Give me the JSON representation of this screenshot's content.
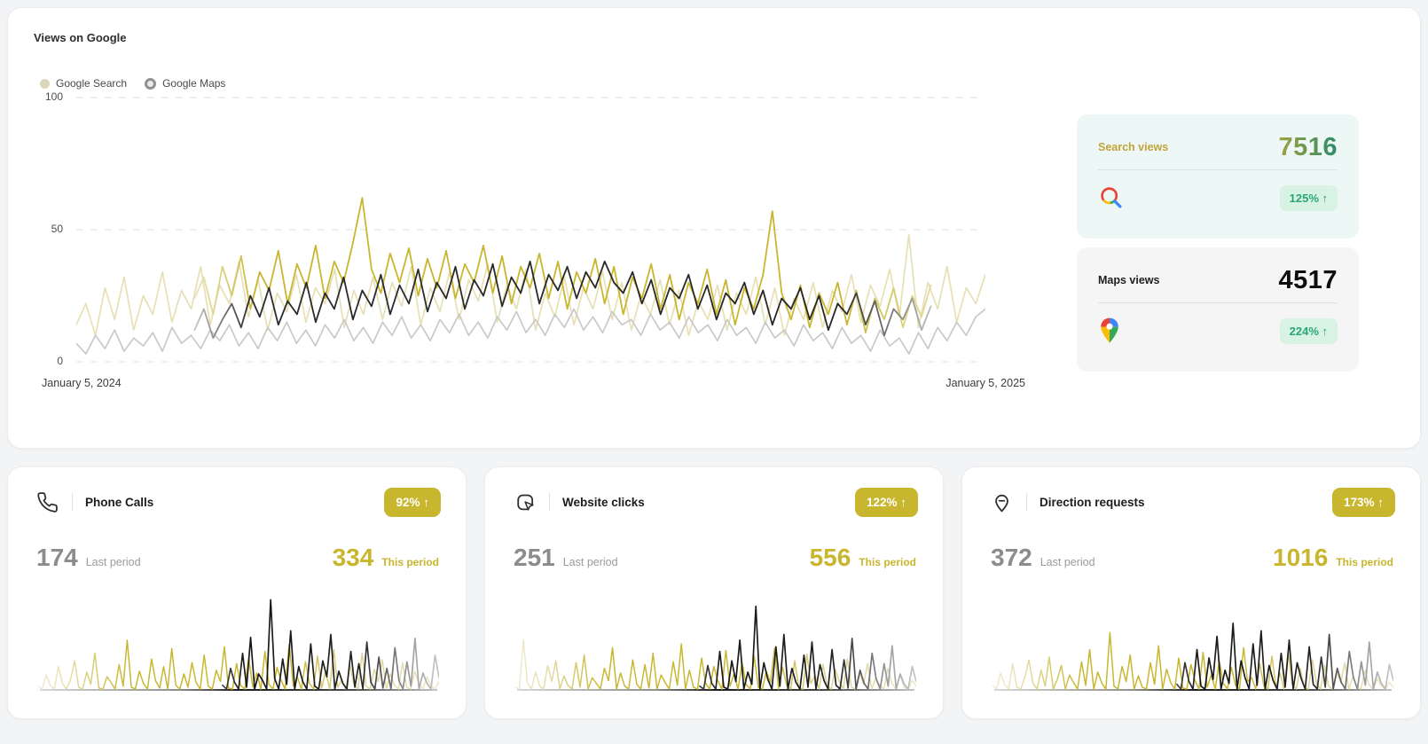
{
  "colors": {
    "accent_olive": "#c8b62e",
    "pale_olive": "#e7e0b4",
    "dark_line": "#262626",
    "pale_gray": "#c9c9c9",
    "grid": "#dfdfdf",
    "mint_card_bg": "#edf8f6",
    "gray_card_bg": "#f5f5f6",
    "green_badge_bg": "#d8f3e4",
    "green_badge_text": "#2aa576",
    "gradients": {
      "main_search_this": [
        [
          0.13,
          "#eae4bf"
        ],
        [
          0.2,
          "#c8b62e"
        ],
        [
          0.84,
          "#c8b62e"
        ],
        [
          0.94,
          "#e2db9f"
        ]
      ],
      "main_maps_this": [
        [
          0.13,
          "#c8c8c8"
        ],
        [
          0.19,
          "#2b2b2b"
        ],
        [
          0.84,
          "#262626"
        ],
        [
          0.94,
          "#bdbdbd"
        ]
      ],
      "mini_yellow": [
        [
          0,
          "#f0ecd6"
        ],
        [
          0.08,
          "#e4dda8"
        ],
        [
          0.22,
          "#c8b62e"
        ],
        [
          0.62,
          "#c8b62e"
        ],
        [
          0.76,
          "#d8cf8b"
        ],
        [
          1,
          "#ece7c8"
        ]
      ],
      "mini_dark": [
        [
          0.46,
          "#444444"
        ],
        [
          0.52,
          "#161616"
        ],
        [
          0.8,
          "#222222"
        ],
        [
          0.93,
          "#9e9e9e"
        ],
        [
          1,
          "#c6c6c6"
        ]
      ],
      "mini_base": [
        [
          0,
          "#d8d8d8"
        ],
        [
          0.35,
          "#8f8f8f"
        ],
        [
          0.5,
          "#1c1c1c"
        ],
        [
          0.78,
          "#4a4a4a"
        ],
        [
          1,
          "#c6c6c6"
        ]
      ]
    }
  },
  "views_panel": {
    "title": "Views on Google",
    "legend": [
      {
        "label": "Google Search"
      },
      {
        "label": "Google Maps"
      }
    ],
    "y_ticks": [
      "100",
      "50",
      "0"
    ],
    "x_start_label": "January 5, 2024",
    "x_end_label": "January 5, 2025",
    "stat_cards": [
      {
        "label": "Search views",
        "value": "7516",
        "change": "125% ↑",
        "icon": "google-search-icon"
      },
      {
        "label": "Maps views",
        "value": "4517",
        "change": "224% ↑",
        "icon": "google-maps-pin-icon"
      }
    ]
  },
  "metric_cards": [
    {
      "title": "Phone Calls",
      "badge": "92% ↑",
      "last_value": "174",
      "last_label": "Last period",
      "this_value": "334",
      "this_label": "This period",
      "icon": "phone-icon"
    },
    {
      "title": "Website clicks",
      "badge": "122% ↑",
      "last_value": "251",
      "last_label": "Last period",
      "this_value": "556",
      "this_label": "This period",
      "icon": "website-click-icon"
    },
    {
      "title": "Direction requests",
      "badge": "173% ↑",
      "last_value": "372",
      "last_label": "Last period",
      "this_value": "1016",
      "this_label": "This period",
      "icon": "direction-pin-icon"
    }
  ],
  "chart_data": [
    {
      "type": "line",
      "title": "Views on Google",
      "xlabel": "",
      "ylabel": "",
      "x_range": [
        "January 5, 2024",
        "January 5, 2025"
      ],
      "ylim": [
        0,
        100
      ],
      "y_ticks": [
        100,
        50,
        0
      ],
      "grid": true,
      "legend_position": "top-left",
      "series": [
        {
          "name": "Google Search (faded/last)",
          "stroke": "#e7e0b4",
          "span": [
            0,
            1
          ],
          "width": 1.7,
          "values": [
            14,
            22,
            10,
            28,
            16,
            32,
            12,
            25,
            18,
            34,
            15,
            27,
            20,
            36,
            14,
            29,
            22,
            38,
            17,
            31,
            12,
            26,
            19,
            33,
            15,
            28,
            22,
            35,
            13,
            27,
            18,
            32,
            16,
            30,
            21,
            36,
            14,
            28,
            19,
            34,
            16,
            31,
            23,
            37,
            15,
            29,
            20,
            35,
            12,
            26,
            17,
            32,
            14,
            28,
            20,
            34,
            16,
            30,
            12,
            25,
            18,
            31,
            14,
            27,
            10,
            23,
            16,
            29,
            12,
            26,
            18,
            32,
            14,
            28,
            10,
            24,
            16,
            30,
            13,
            27,
            19,
            33,
            15,
            29,
            21,
            35,
            17,
            48,
            13,
            30,
            20,
            36,
            15,
            28,
            22,
            33
          ]
        },
        {
          "name": "Google Maps (faded/last)",
          "stroke": "#c9c9c9",
          "span": [
            0,
            1
          ],
          "width": 1.7,
          "values": [
            7,
            3,
            10,
            5,
            12,
            4,
            9,
            6,
            11,
            4,
            13,
            7,
            10,
            5,
            12,
            8,
            14,
            6,
            11,
            5,
            13,
            8,
            15,
            7,
            12,
            6,
            14,
            9,
            16,
            8,
            13,
            7,
            15,
            10,
            17,
            9,
            14,
            8,
            16,
            11,
            18,
            10,
            15,
            9,
            17,
            12,
            19,
            11,
            16,
            10,
            18,
            13,
            20,
            12,
            17,
            11,
            19,
            14,
            16,
            10,
            18,
            12,
            15,
            9,
            17,
            11,
            14,
            8,
            16,
            10,
            13,
            7,
            15,
            9,
            12,
            6,
            14,
            8,
            11,
            5,
            13,
            7,
            10,
            4,
            12,
            6,
            9,
            3,
            11,
            5,
            13,
            8,
            15,
            10,
            17,
            20
          ]
        },
        {
          "name": "Google Search (this period)",
          "grad": "main_search_this",
          "span": [
            0.13,
            0.94
          ],
          "width": 1.8,
          "values": [
            24,
            32,
            18,
            36,
            25,
            40,
            20,
            34,
            27,
            42,
            22,
            37,
            28,
            44,
            24,
            38,
            30,
            45,
            62,
            35,
            26,
            41,
            30,
            43,
            25,
            39,
            28,
            42,
            24,
            37,
            30,
            44,
            26,
            40,
            22,
            36,
            28,
            41,
            24,
            38,
            20,
            34,
            26,
            39,
            22,
            36,
            18,
            32,
            24,
            37,
            20,
            33,
            16,
            30,
            22,
            35,
            18,
            31,
            14,
            28,
            20,
            33,
            57,
            26,
            16,
            29,
            13,
            26,
            18,
            30,
            14,
            27,
            11,
            24,
            16,
            28,
            13,
            25,
            17,
            29
          ]
        },
        {
          "name": "Google Maps (this period)",
          "grad": "main_maps_this",
          "span": [
            0.13,
            0.94
          ],
          "width": 1.8,
          "values": [
            12,
            20,
            9,
            16,
            22,
            13,
            25,
            17,
            28,
            14,
            23,
            18,
            30,
            15,
            26,
            20,
            32,
            16,
            27,
            21,
            33,
            18,
            29,
            22,
            35,
            19,
            30,
            24,
            36,
            20,
            31,
            25,
            37,
            21,
            32,
            26,
            38,
            22,
            33,
            27,
            36,
            24,
            34,
            28,
            38,
            30,
            26,
            34,
            22,
            31,
            18,
            28,
            24,
            33,
            20,
            29,
            16,
            26,
            22,
            30,
            18,
            27,
            14,
            24,
            20,
            28,
            16,
            25,
            12,
            22,
            18,
            26,
            14,
            23,
            10,
            20,
            16,
            24,
            12,
            21
          ]
        }
      ]
    },
    {
      "type": "line",
      "title": "Phone Calls",
      "ylim": [
        0,
        100
      ],
      "grid": false,
      "series": [
        {
          "name": "this period",
          "grad": "mini_yellow",
          "span": [
            0,
            1
          ],
          "width": 1.5,
          "values": [
            3,
            0,
            15,
            4,
            0,
            24,
            6,
            0,
            10,
            30,
            2,
            0,
            18,
            5,
            38,
            1,
            0,
            13,
            7,
            0,
            26,
            3,
            52,
            2,
            0,
            19,
            6,
            0,
            32,
            9,
            1,
            24,
            0,
            43,
            4,
            0,
            16,
            2,
            28,
            7,
            0,
            36,
            3,
            0,
            20,
            8,
            45,
            1,
            0,
            27,
            4,
            0,
            33,
            2,
            17,
            0,
            40,
            5,
            0,
            23,
            9,
            0,
            48,
            3,
            13,
            0,
            29,
            6,
            0,
            35,
            1,
            19,
            0,
            42,
            2,
            10,
            0,
            25,
            5,
            0,
            38,
            3,
            0,
            21,
            8,
            31,
            0,
            16,
            4,
            0,
            28,
            2,
            0,
            19,
            6,
            0,
            13,
            3,
            0,
            8
          ]
        },
        {
          "name": "last period",
          "grad": "mini_dark",
          "span": [
            0.46,
            1
          ],
          "width": 1.7,
          "values": [
            4,
            0,
            22,
            7,
            0,
            38,
            2,
            55,
            0,
            16,
            9,
            0,
            95,
            11,
            0,
            32,
            5,
            62,
            0,
            24,
            8,
            0,
            48,
            3,
            0,
            30,
            13,
            58,
            0,
            19,
            6,
            0,
            40,
            2,
            27,
            0,
            50,
            7,
            0,
            34,
            1,
            22,
            0,
            44,
            9,
            0,
            29,
            3,
            54,
            0,
            17,
            6,
            0,
            36,
            12
          ]
        }
      ]
    },
    {
      "type": "line",
      "title": "Website clicks",
      "ylim": [
        0,
        100
      ],
      "grid": false,
      "series": [
        {
          "name": "this period",
          "grad": "mini_yellow",
          "span": [
            0,
            1
          ],
          "width": 1.5,
          "values": [
            2,
            0,
            52,
            6,
            0,
            18,
            3,
            0,
            25,
            8,
            30,
            0,
            14,
            4,
            0,
            28,
            2,
            36,
            0,
            12,
            6,
            0,
            22,
            9,
            44,
            0,
            17,
            3,
            0,
            31,
            5,
            0,
            26,
            1,
            38,
            0,
            15,
            7,
            0,
            29,
            4,
            48,
            0,
            20,
            2,
            0,
            33,
            6,
            0,
            24,
            9,
            0,
            41,
            3,
            16,
            0,
            28,
            5,
            0,
            35,
            2,
            0,
            19,
            7,
            43,
            0,
            23,
            4,
            0,
            30,
            1,
            0,
            37,
            6,
            14,
            0,
            26,
            3,
            0,
            21,
            8,
            0,
            32,
            2,
            0,
            17,
            5,
            27,
            0,
            12,
            4,
            0,
            22,
            6,
            0,
            15,
            2,
            0,
            9,
            3
          ]
        },
        {
          "name": "last period",
          "grad": "mini_dark",
          "span": [
            0.46,
            1
          ],
          "width": 1.7,
          "values": [
            3,
            0,
            25,
            6,
            0,
            40,
            2,
            0,
            30,
            8,
            52,
            0,
            18,
            5,
            88,
            0,
            28,
            10,
            0,
            45,
            3,
            58,
            0,
            22,
            7,
            0,
            36,
            2,
            50,
            0,
            26,
            9,
            0,
            42,
            4,
            0,
            31,
            1,
            54,
            0,
            20,
            6,
            0,
            38,
            11,
            0,
            27,
            3,
            46,
            0,
            16,
            5,
            0,
            24,
            8
          ]
        }
      ]
    },
    {
      "type": "line",
      "title": "Direction requests",
      "ylim": [
        0,
        100
      ],
      "grid": false,
      "series": [
        {
          "name": "this period",
          "grad": "mini_yellow",
          "span": [
            0,
            1
          ],
          "width": 1.5,
          "values": [
            4,
            0,
            17,
            5,
            0,
            27,
            2,
            0,
            13,
            31,
            6,
            0,
            20,
            3,
            34,
            0,
            10,
            25,
            0,
            15,
            7,
            0,
            29,
            4,
            42,
            0,
            18,
            6,
            0,
            60,
            3,
            0,
            24,
            8,
            36,
            0,
            14,
            2,
            0,
            28,
            5,
            46,
            0,
            21,
            7,
            0,
            33,
            1,
            0,
            26,
            9,
            0,
            39,
            2,
            15,
            0,
            30,
            6,
            0,
            23,
            4,
            0,
            44,
            8,
            12,
            0,
            27,
            3,
            0,
            35,
            2,
            17,
            0,
            40,
            5,
            0,
            22,
            1,
            0,
            31,
            6,
            0,
            25,
            3,
            0,
            18,
            7,
            28,
            0,
            13,
            2,
            0,
            20,
            4,
            0,
            11,
            3,
            0,
            7,
            2
          ]
        },
        {
          "name": "last period",
          "grad": "mini_dark",
          "span": [
            0.46,
            1
          ],
          "width": 1.7,
          "values": [
            5,
            0,
            28,
            8,
            0,
            42,
            3,
            0,
            33,
            10,
            56,
            0,
            20,
            6,
            70,
            0,
            30,
            12,
            0,
            48,
            4,
            62,
            0,
            25,
            9,
            0,
            38,
            2,
            52,
            0,
            28,
            11,
            0,
            45,
            5,
            0,
            34,
            2,
            58,
            0,
            22,
            7,
            0,
            40,
            13,
            0,
            29,
            4,
            50,
            0,
            18,
            6,
            0,
            26,
            9
          ]
        }
      ]
    }
  ]
}
